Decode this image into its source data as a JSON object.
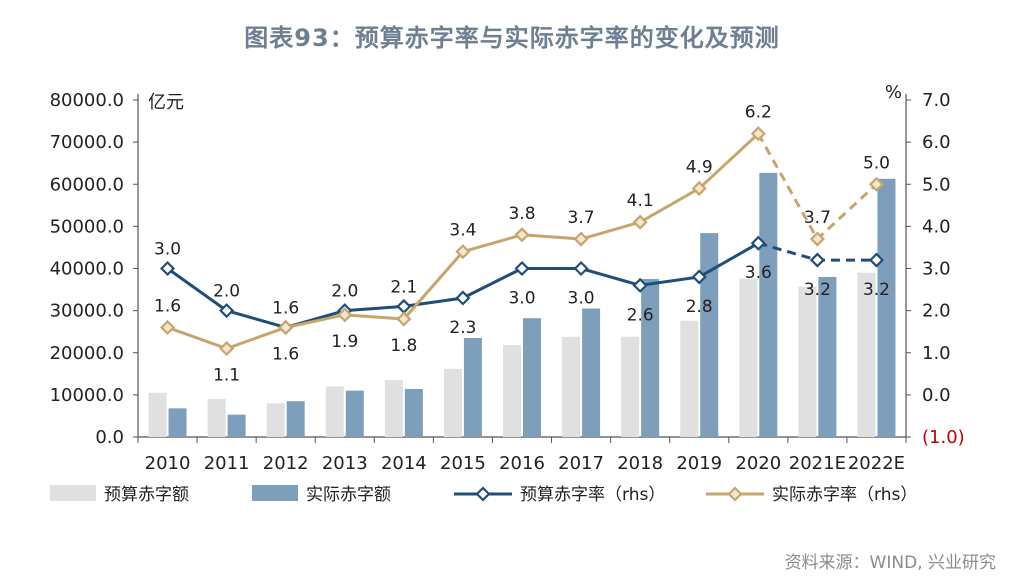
{
  "title": "图表93：预算赤字率与实际赤字率的变化及预测",
  "source": "资料来源：WIND, 兴业研究",
  "chart_data": {
    "type": "bar+line",
    "categories": [
      "2010",
      "2011",
      "2012",
      "2013",
      "2014",
      "2015",
      "2016",
      "2017",
      "2018",
      "2019",
      "2020",
      "2021E",
      "2022E"
    ],
    "left_axis": {
      "unit": "亿元",
      "range": [
        0,
        80000
      ],
      "ticks": [
        "0.0",
        "10000.0",
        "20000.0",
        "30000.0",
        "40000.0",
        "50000.0",
        "60000.0",
        "70000.0",
        "80000.0"
      ]
    },
    "right_axis": {
      "unit": "%",
      "range": [
        -1,
        7
      ],
      "ticks": [
        "(1.0)",
        "0.0",
        "1.0",
        "2.0",
        "3.0",
        "4.0",
        "5.0",
        "6.0",
        "7.0"
      ]
    },
    "bar_series": [
      {
        "name": "预算赤字额",
        "color": "#e0e0e0",
        "values": [
          10500,
          9000,
          8000,
          12000,
          13500,
          16200,
          21800,
          23800,
          23800,
          27600,
          37600,
          35700,
          39000
        ]
      },
      {
        "name": "实际赤字额",
        "color": "#7d9fbc",
        "values": [
          6800,
          5300,
          8500,
          11000,
          11400,
          23500,
          28200,
          30500,
          37500,
          48400,
          62700,
          38000,
          61300
        ]
      }
    ],
    "line_series": [
      {
        "name": "预算赤字率（rhs）",
        "color": "#1f4e79",
        "dash_from_index": 10,
        "values": [
          3.0,
          2.0,
          1.6,
          2.0,
          2.1,
          2.3,
          3.0,
          3.0,
          2.6,
          2.8,
          3.6,
          3.2,
          3.2
        ],
        "labels": [
          "3.0",
          "2.0",
          "1.6",
          "2.0",
          "2.1",
          "2.3",
          "3.0",
          "3.0",
          "2.6",
          "2.8",
          "3.6",
          "3.2",
          "3.2"
        ]
      },
      {
        "name": "实际赤字率（rhs）",
        "color": "#c8a56a",
        "dash_from_index": 10,
        "values": [
          1.6,
          1.1,
          1.6,
          1.9,
          1.8,
          3.4,
          3.8,
          3.7,
          4.1,
          4.9,
          6.2,
          3.7,
          5.0
        ],
        "labels": [
          "1.6",
          "1.1",
          "1.6",
          "1.9",
          "1.8",
          "3.4",
          "3.8",
          "3.7",
          "4.1",
          "4.9",
          "6.2",
          "3.7",
          "5.0"
        ]
      }
    ]
  }
}
